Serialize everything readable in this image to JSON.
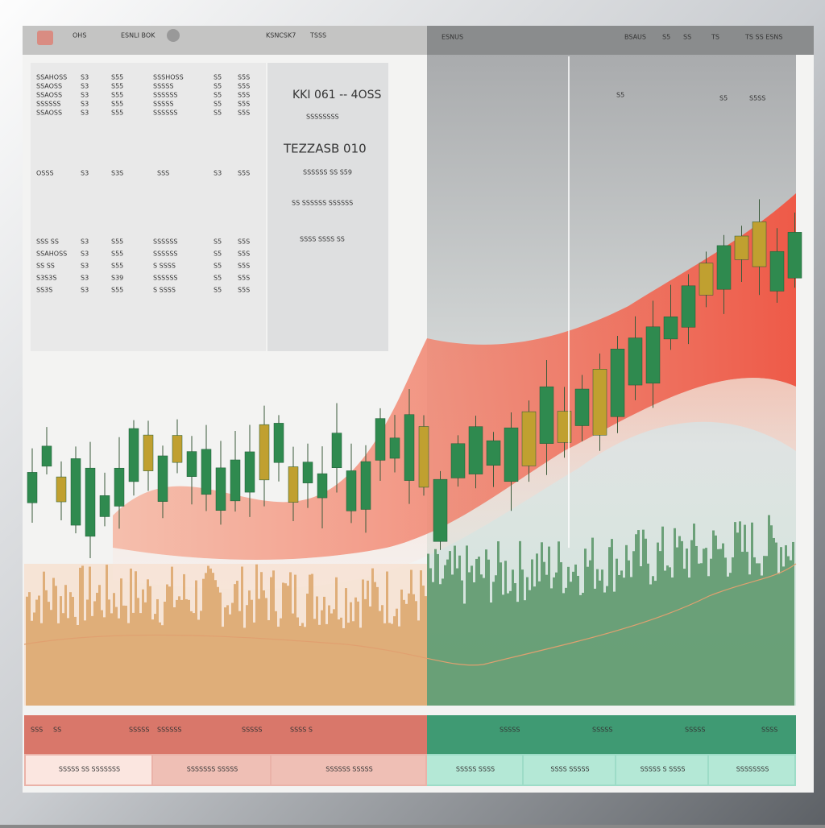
{
  "toolbar": {
    "left": [
      "OHS",
      "ESNLI BOK",
      "KSNCSK7",
      "TSSS"
    ],
    "right": [
      "ESNUS",
      "BSAUS",
      "S5",
      "SS",
      "TS",
      "TS SS ESNS"
    ]
  },
  "left_panel": {
    "column_a": [
      [
        "SSAHOSS",
        "S3",
        "S55"
      ],
      [
        "SSAOSS",
        "S3",
        "S55"
      ],
      [
        "SSAOSS",
        "S3",
        "S55"
      ],
      [
        "SSSSSS",
        "S3",
        "S55"
      ],
      [
        "SSAOSS",
        "S3",
        "S55"
      ],
      [
        "SSS SS",
        "S3",
        "S55"
      ],
      [
        "SSAHOSS",
        "S3",
        "S55"
      ],
      [
        "SS SS",
        "S3",
        "S55"
      ],
      [
        "S3S3S",
        "S3",
        "S39"
      ],
      [
        "SS3S",
        "S3",
        "S55"
      ]
    ],
    "column_b": [
      [
        "SSSHOSS",
        "S5",
        "S5S"
      ],
      [
        "SSSSS",
        "S5",
        "S5S"
      ],
      [
        "SSSSSS",
        "S5",
        "S5S"
      ],
      [
        "SSSSS",
        "S5",
        "S5S"
      ],
      [
        "SSSSSS",
        "S5",
        "S5S"
      ],
      [
        "SSSSSS",
        "S5",
        "S5S"
      ],
      [
        "SSSSSS",
        "S5",
        "S5S"
      ],
      [
        "S SSSS",
        "S5",
        "S5S"
      ],
      [
        "SSSSSS",
        "S5",
        "S5S"
      ],
      [
        "S SSSS",
        "S5",
        "S5S"
      ]
    ],
    "summary_a": [
      "OSSS",
      "S3",
      "S3S"
    ],
    "summary_b": [
      "SSS",
      "S3",
      "S5S"
    ]
  },
  "center_panel": {
    "title": "KKI 061 -- 4OSS",
    "caption": "SSSSSSSS",
    "headline": "TEZZASB 010",
    "note": "SSSSSS SS  S59",
    "line_a": "SS  SSSSSS  SSSSSS",
    "line_b": "SSSS SSSS  SS"
  },
  "chart_labels": [
    "S5",
    "S5",
    "S5SS"
  ],
  "footer": {
    "top_left": [
      "SSS",
      "SS",
      "SSSSS",
      "SSSSSS",
      "SSSSS",
      "SSSS S"
    ],
    "top_right": [
      "SSSSS",
      "SSSSS",
      "SSSSS",
      "SSSS"
    ],
    "tabs": [
      "SSSSS SS SSSSSSS",
      "SSSSSSS SSSSS",
      "SSSSSS SSSSS",
      "SSSSS SSSS",
      "SSSS SSSSS",
      "SSSSS S SSSS",
      "SSSSSSSS"
    ]
  }
}
